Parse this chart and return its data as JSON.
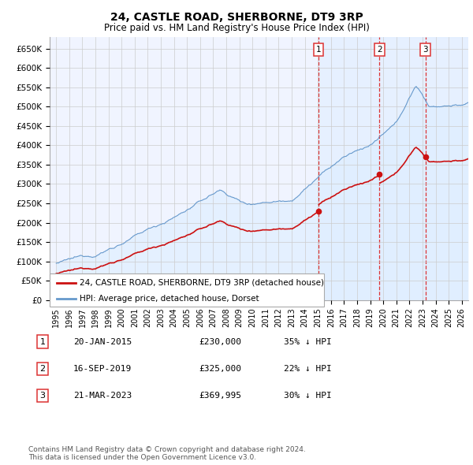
{
  "title": "24, CASTLE ROAD, SHERBORNE, DT9 3RP",
  "subtitle": "Price paid vs. HM Land Registry's House Price Index (HPI)",
  "title_fontsize": 10,
  "subtitle_fontsize": 8.5,
  "ylim": [
    0,
    680000
  ],
  "yticks": [
    0,
    50000,
    100000,
    150000,
    200000,
    250000,
    300000,
    350000,
    400000,
    450000,
    500000,
    550000,
    600000,
    650000
  ],
  "ytick_labels": [
    "£0",
    "£50K",
    "£100K",
    "£150K",
    "£200K",
    "£250K",
    "£300K",
    "£350K",
    "£400K",
    "£450K",
    "£500K",
    "£550K",
    "£600K",
    "£650K"
  ],
  "xlim_start": 1994.5,
  "xlim_end": 2026.5,
  "xticks": [
    1995,
    1996,
    1997,
    1998,
    1999,
    2000,
    2001,
    2002,
    2003,
    2004,
    2005,
    2006,
    2007,
    2008,
    2009,
    2010,
    2011,
    2012,
    2013,
    2014,
    2015,
    2016,
    2017,
    2018,
    2019,
    2020,
    2021,
    2022,
    2023,
    2024,
    2025,
    2026
  ],
  "hpi_color": "#6699cc",
  "hpi_fill_color": "#ddeeff",
  "price_color": "#cc1111",
  "vline_color": "#dd3333",
  "marker_color": "#cc1111",
  "grid_color": "#cccccc",
  "bg_color": "#f0f4ff",
  "shade_color": "#ddeeff",
  "legend_label_price": "24, CASTLE ROAD, SHERBORNE, DT9 3RP (detached house)",
  "legend_label_hpi": "HPI: Average price, detached house, Dorset",
  "transactions": [
    {
      "num": 1,
      "date": "20-JAN-2015",
      "price": 230000,
      "pct": "35%",
      "year": 2015.05
    },
    {
      "num": 2,
      "date": "16-SEP-2019",
      "price": 325000,
      "pct": "22%",
      "year": 2019.71
    },
    {
      "num": 3,
      "date": "21-MAR-2023",
      "price": 369995,
      "pct": "30%",
      "year": 2023.22
    }
  ],
  "footnote": "Contains HM Land Registry data © Crown copyright and database right 2024.\nThis data is licensed under the Open Government Licence v3.0.",
  "footnote_fontsize": 6.5,
  "table_fontsize": 8.5
}
